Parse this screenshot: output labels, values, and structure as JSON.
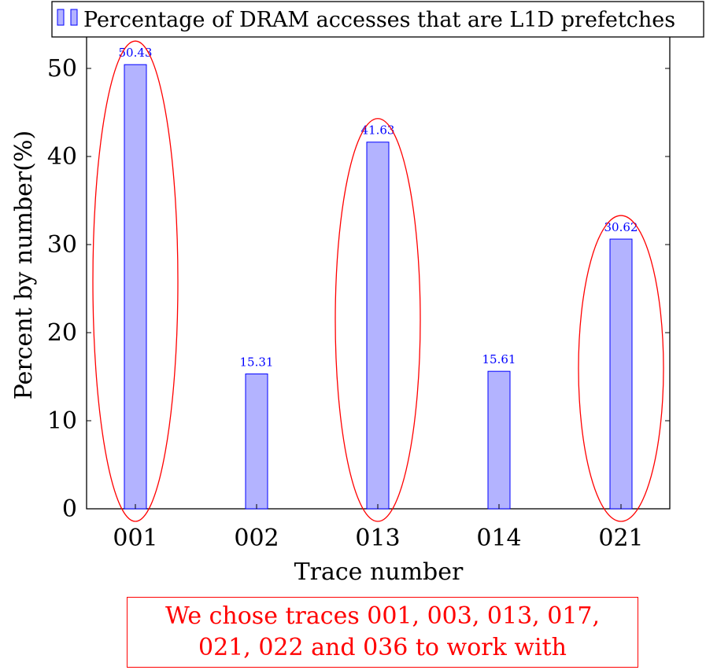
{
  "chart_data": {
    "type": "bar",
    "categories": [
      "001",
      "002",
      "013",
      "014",
      "021"
    ],
    "series": [
      {
        "name": "Percentage of DRAM accesses that are L1D prefetches",
        "values": [
          50.43,
          15.31,
          41.63,
          15.61,
          30.62
        ],
        "labels": [
          "50.43",
          "15.31",
          "41.63",
          "15.61",
          "30.62"
        ]
      }
    ],
    "xlabel": "Trace number",
    "ylabel": "Percent by number(%)",
    "ylim": [
      0,
      50
    ],
    "yticks": [
      0,
      10,
      20,
      30,
      40,
      50
    ],
    "legend": "top",
    "grid": false,
    "highlighted_categories": [
      "001",
      "013",
      "021"
    ],
    "colors": {
      "bar_fill": "#b3b3ff",
      "bar_stroke": "#0000ff",
      "data_label": "#0000ff",
      "highlight": "#ff0000"
    }
  },
  "annotation": {
    "line1": "We chose traces 001, 003, 013, 017,",
    "line2": "021, 022 and 036 to work with"
  }
}
